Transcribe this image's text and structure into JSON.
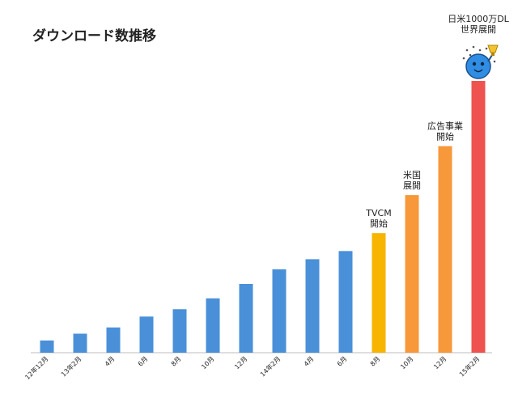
{
  "chart_data": {
    "type": "bar",
    "title": "ダウンロード数推移",
    "xlabel": "",
    "ylabel": "",
    "ylim": [
      0,
      1000
    ],
    "grid": false,
    "legend": "none",
    "categories": [
      "12年12月",
      "13年2月",
      "4月",
      "6月",
      "8月",
      "10月",
      "12月",
      "14年2月",
      "4月",
      "6月",
      "8月",
      "10月",
      "12月",
      "15年2月"
    ],
    "values": [
      45,
      70,
      93,
      133,
      160,
      200,
      253,
      307,
      344,
      374,
      440,
      580,
      760,
      1000
    ],
    "bar_colors": [
      "#4a90d9",
      "#4a90d9",
      "#4a90d9",
      "#4a90d9",
      "#4a90d9",
      "#4a90d9",
      "#4a90d9",
      "#4a90d9",
      "#4a90d9",
      "#4a90d9",
      "#f7b500",
      "#f7983a",
      "#f7983a",
      "#ef5350"
    ],
    "annotations": [
      {
        "index": 10,
        "lines": [
          "TVCM",
          "開始"
        ]
      },
      {
        "index": 11,
        "lines": [
          "米国",
          "展開"
        ]
      },
      {
        "index": 12,
        "lines": [
          "広告事業",
          "開始"
        ]
      },
      {
        "index": 13,
        "lines": [
          "日米1000万DL",
          "世界展開"
        ]
      }
    ],
    "mascot_icon": "blue-mascot-trophy-icon"
  }
}
